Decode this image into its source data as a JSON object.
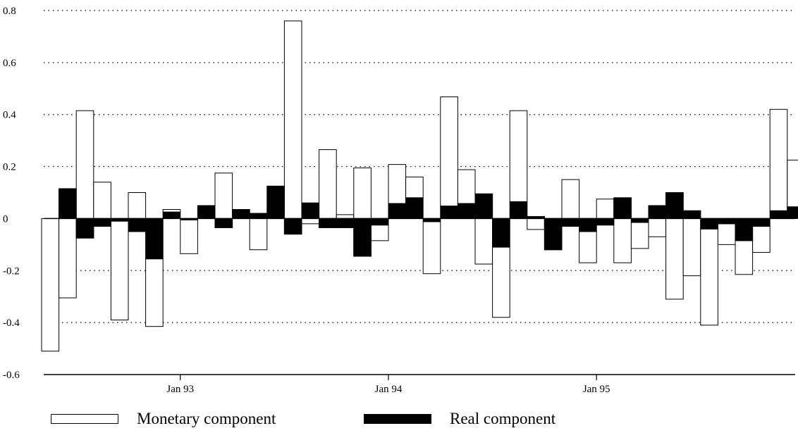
{
  "chart_data": {
    "type": "bar",
    "stacked": true,
    "title": "",
    "xlabel": "",
    "ylabel": "",
    "ylim": [
      -0.6,
      0.8
    ],
    "y_ticks": [
      "0.8",
      "0.6",
      "0.4",
      "0.2",
      "0",
      "-0.2",
      "-0.4",
      "-0.6"
    ],
    "x_tick_labels": [
      {
        "label": "Jan 93",
        "index": 8
      },
      {
        "label": "Jan 94",
        "index": 20
      },
      {
        "label": "Jan 95",
        "index": 32
      }
    ],
    "grid": "horizontal-dotted",
    "legend": "bottom",
    "series": [
      {
        "name": "Monetary component",
        "color": "#ffffff",
        "values": [
          -0.51,
          -0.42,
          0.49,
          0.17,
          -0.38,
          0.15,
          -0.26,
          0.01,
          -0.13,
          0.0,
          0.21,
          0.0,
          -0.14,
          0.0,
          0.82,
          -0.08,
          0.3,
          0.05,
          0.34,
          -0.06,
          0.15,
          0.08,
          -0.2,
          0.42,
          0.13,
          -0.27,
          -0.27,
          0.35,
          -0.05,
          0.12,
          0.18,
          -0.12,
          0.1,
          -0.25,
          -0.1,
          -0.12,
          -0.41,
          -0.25,
          -0.37,
          -0.08,
          -0.13,
          -0.1,
          0.39,
          0.18
        ]
      },
      {
        "name": "Real component",
        "color": "#000000",
        "values": [
          0.0,
          0.115,
          -0.075,
          -0.03,
          -0.01,
          -0.05,
          -0.155,
          0.025,
          -0.005,
          0.05,
          -0.035,
          0.035,
          0.02,
          0.125,
          -0.06,
          0.06,
          -0.035,
          -0.035,
          -0.145,
          -0.025,
          0.058,
          0.08,
          -0.012,
          0.048,
          0.058,
          0.095,
          -0.11,
          0.065,
          0.008,
          -0.12,
          -0.03,
          -0.05,
          -0.025,
          0.08,
          -0.015,
          0.05,
          0.1,
          0.03,
          -0.04,
          -0.02,
          -0.085,
          -0.03,
          0.03,
          0.045
        ]
      }
    ]
  },
  "legend": {
    "monetary_label": "Monetary component",
    "real_label": "Real component"
  }
}
